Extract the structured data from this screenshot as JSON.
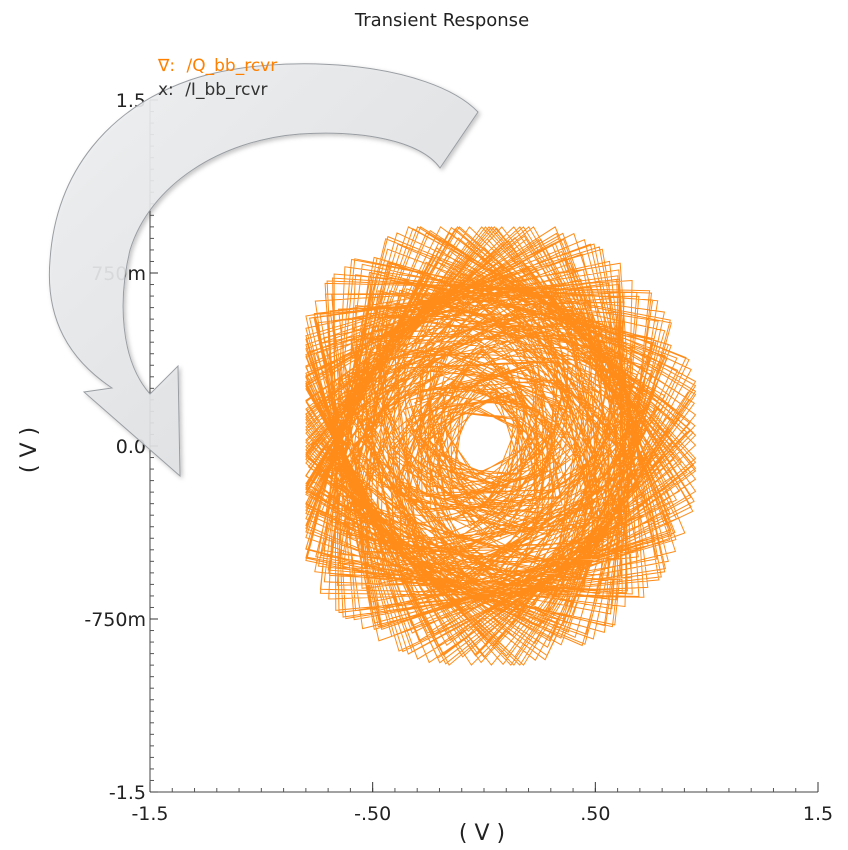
{
  "chart_data": {
    "type": "line",
    "title": "Transient Response",
    "xlabel": "( V )",
    "ylabel": "( V )",
    "xlim": [
      -1.5,
      1.5
    ],
    "ylim": [
      -1.5,
      1.5
    ],
    "x_ticks": [
      {
        "value": -1.5,
        "label": "-1.5"
      },
      {
        "value": -0.5,
        "label": "-.50"
      },
      {
        "value": 0.5,
        "label": ".50"
      },
      {
        "value": 1.5,
        "label": "1.5"
      }
    ],
    "y_ticks": [
      {
        "value": 1.5,
        "label": "1.5"
      },
      {
        "value": 0.75,
        "label": "750m"
      },
      {
        "value": 0.0,
        "label": "0.0"
      },
      {
        "value": -0.75,
        "label": "-750m"
      },
      {
        "value": -1.5,
        "label": "-1.5"
      }
    ],
    "legend": [
      {
        "marker": "∇:",
        "text": "/Q_bb_rcvr",
        "color": "#ff8000"
      },
      {
        "marker": "x:",
        "text": "/I_bb_rcvr",
        "color": "#333333"
      }
    ],
    "legend_position": "top-left",
    "grid": false,
    "series": [
      {
        "name": "/Q_bb_rcvr vs /I_bb_rcvr",
        "color": "#ff8000",
        "pattern": "rotating constellation spiral",
        "x_range": [
          -0.8,
          0.95
        ],
        "y_range": [
          -0.95,
          0.95
        ],
        "center": [
          0.0,
          0.02
        ]
      }
    ],
    "annotation": {
      "type": "curved-arrow",
      "direction": "counter-clockwise",
      "color": "#e8eaec"
    }
  }
}
